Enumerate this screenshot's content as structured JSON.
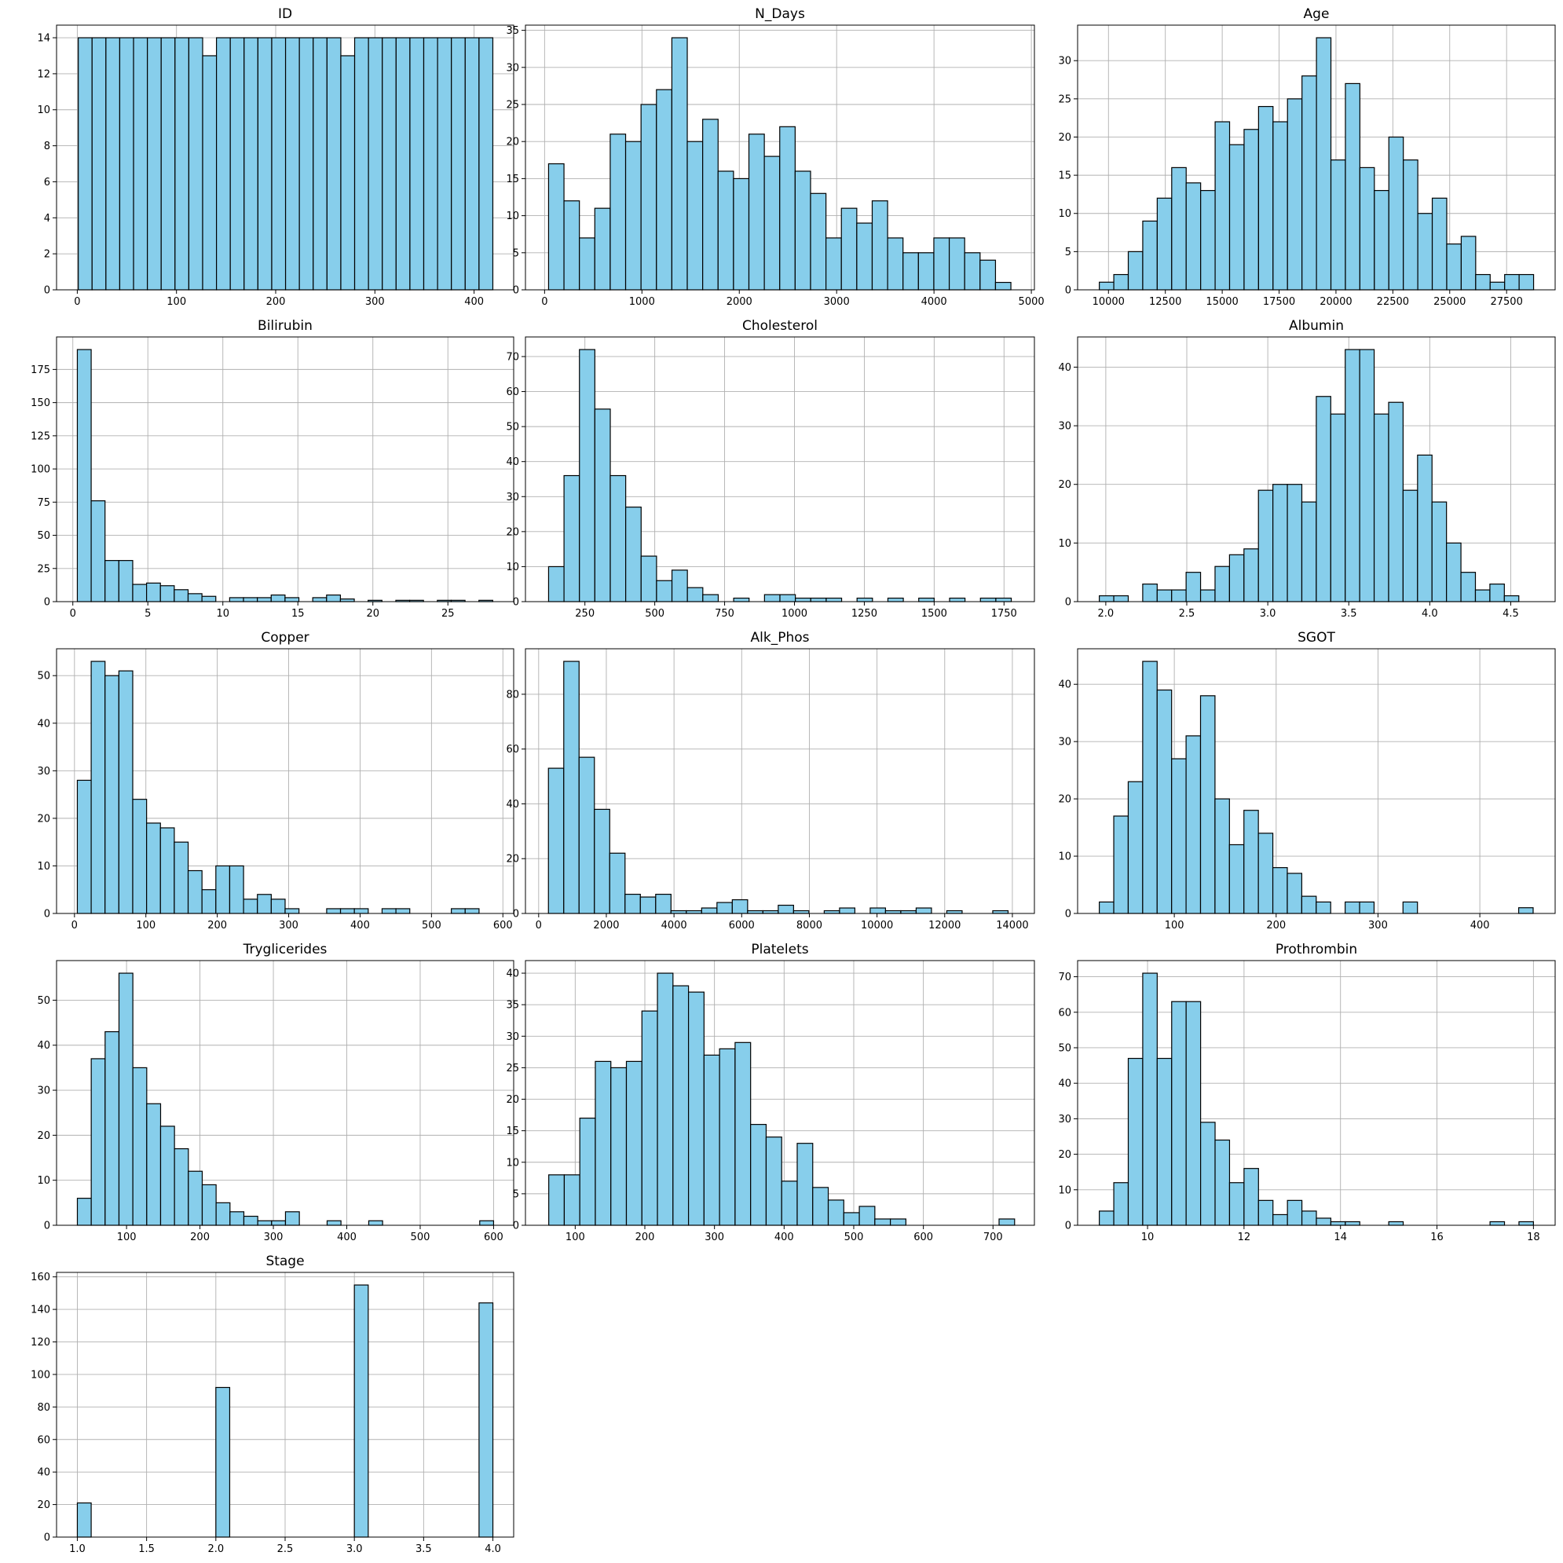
{
  "colors": {
    "bar_fill": "#87ceeb",
    "bar_edge": "#000000",
    "grid": "#b0b0b0",
    "axes": "#000000"
  },
  "chart_data": [
    {
      "type": "bar",
      "title": "ID",
      "grid": true,
      "bin_start": 1,
      "bin_width": 13.93,
      "values": [
        14,
        14,
        14,
        14,
        14,
        14,
        14,
        14,
        14,
        13,
        14,
        14,
        14,
        14,
        14,
        14,
        14,
        14,
        14,
        13,
        14,
        14,
        14,
        14,
        14,
        14,
        14,
        14,
        14,
        14
      ],
      "xlim": [
        -20.9,
        439.9
      ],
      "xticks": [
        0,
        100,
        200,
        300,
        400
      ],
      "xtick_labels": [
        "0",
        "100",
        "200",
        "300",
        "400"
      ],
      "ylim": [
        0,
        14.7
      ],
      "yticks": [
        0,
        2,
        4,
        6,
        8,
        10,
        12,
        14
      ],
      "ytick_labels": [
        "0",
        "2",
        "4",
        "6",
        "8",
        "10",
        "12",
        "14"
      ]
    },
    {
      "type": "bar",
      "title": "N_Days",
      "grid": true,
      "bin_start": 41,
      "bin_width": 158.3,
      "values": [
        17,
        12,
        7,
        11,
        21,
        20,
        25,
        27,
        34,
        20,
        23,
        16,
        15,
        21,
        18,
        22,
        16,
        13,
        7,
        11,
        9,
        12,
        7,
        5,
        5,
        7,
        7,
        5,
        4,
        1
      ],
      "xlim": [
        -196.5,
        5031.5
      ],
      "xticks": [
        0,
        1000,
        2000,
        3000,
        4000,
        5000
      ],
      "xtick_labels": [
        "0",
        "1000",
        "2000",
        "3000",
        "4000",
        "5000"
      ],
      "ylim": [
        0,
        35.7
      ],
      "yticks": [
        0,
        5,
        10,
        15,
        20,
        25,
        30,
        35
      ],
      "ytick_labels": [
        "0",
        "5",
        "10",
        "15",
        "20",
        "25",
        "30",
        "35"
      ]
    },
    {
      "type": "bar",
      "title": "Age",
      "grid": true,
      "bin_start": 9598,
      "bin_width": 636.3,
      "values": [
        1,
        2,
        5,
        9,
        12,
        16,
        14,
        13,
        22,
        19,
        21,
        24,
        22,
        25,
        28,
        33,
        17,
        27,
        16,
        13,
        20,
        17,
        10,
        12,
        6,
        7,
        2,
        1,
        2,
        2
      ],
      "xlim": [
        8643.6,
        29634.4
      ],
      "xticks": [
        10000,
        12500,
        15000,
        17500,
        20000,
        22500,
        25000,
        27500
      ],
      "xtick_labels": [
        "10000",
        "12500",
        "15000",
        "17500",
        "20000",
        "22500",
        "25000",
        "27500"
      ],
      "ylim": [
        0,
        34.65
      ],
      "yticks": [
        0,
        5,
        10,
        15,
        20,
        25,
        30
      ],
      "ytick_labels": [
        "0",
        "5",
        "10",
        "15",
        "20",
        "25",
        "30"
      ]
    },
    {
      "type": "bar",
      "title": "Bilirubin",
      "grid": true,
      "bin_start": 0.3,
      "bin_width": 0.923,
      "values": [
        190,
        76,
        31,
        31,
        13,
        14,
        12,
        9,
        6,
        4,
        0,
        3,
        3,
        3,
        5,
        3,
        0,
        3,
        5,
        2,
        0,
        1,
        0,
        1,
        1,
        0,
        1,
        1,
        0,
        1
      ],
      "xlim": [
        -1.085,
        29.385
      ],
      "xticks": [
        0,
        5,
        10,
        15,
        20,
        25
      ],
      "xtick_labels": [
        "0",
        "5",
        "10",
        "15",
        "20",
        "25"
      ],
      "ylim": [
        0,
        199.5
      ],
      "yticks": [
        0,
        25,
        50,
        75,
        100,
        125,
        150,
        175
      ],
      "ytick_labels": [
        "0",
        "25",
        "50",
        "75",
        "100",
        "125",
        "150",
        "175"
      ]
    },
    {
      "type": "bar",
      "title": "Cholesterol",
      "grid": true,
      "bin_start": 120,
      "bin_width": 55.2,
      "values": [
        10,
        36,
        72,
        55,
        36,
        27,
        13,
        6,
        9,
        4,
        2,
        0,
        1,
        0,
        2,
        2,
        1,
        1,
        1,
        0,
        1,
        0,
        1,
        0,
        1,
        0,
        1,
        0,
        1,
        1
      ],
      "xlim": [
        37.2,
        1858.8
      ],
      "xticks": [
        250,
        500,
        750,
        1000,
        1250,
        1500,
        1750
      ],
      "xtick_labels": [
        "250",
        "500",
        "750",
        "1000",
        "1250",
        "1500",
        "1750"
      ],
      "ylim": [
        0,
        75.6
      ],
      "yticks": [
        0,
        10,
        20,
        30,
        40,
        50,
        60,
        70
      ],
      "ytick_labels": [
        "0",
        "10",
        "20",
        "30",
        "40",
        "50",
        "60",
        "70"
      ]
    },
    {
      "type": "bar",
      "title": "Albumin",
      "grid": true,
      "bin_start": 1.96,
      "bin_width": 0.0893,
      "values": [
        1,
        1,
        0,
        3,
        2,
        2,
        5,
        2,
        6,
        8,
        9,
        19,
        20,
        20,
        17,
        35,
        32,
        43,
        43,
        32,
        34,
        19,
        25,
        17,
        10,
        5,
        2,
        3,
        1,
        0
      ],
      "xlim": [
        1.826,
        4.774
      ],
      "xticks": [
        2.0,
        2.5,
        3.0,
        3.5,
        4.0,
        4.5
      ],
      "xtick_labels": [
        "2.0",
        "2.5",
        "3.0",
        "3.5",
        "4.0",
        "4.5"
      ],
      "ylim": [
        0,
        45.15
      ],
      "yticks": [
        0,
        10,
        20,
        30,
        40
      ],
      "ytick_labels": [
        "0",
        "10",
        "20",
        "30",
        "40"
      ]
    },
    {
      "type": "bar",
      "title": "Copper",
      "grid": true,
      "bin_start": 4,
      "bin_width": 19.4,
      "values": [
        28,
        53,
        50,
        51,
        24,
        19,
        18,
        15,
        9,
        5,
        10,
        10,
        3,
        4,
        3,
        1,
        0,
        0,
        1,
        1,
        1,
        0,
        1,
        1,
        0,
        0,
        0,
        1,
        1,
        0
      ],
      "xlim": [
        -25.1,
        615.1
      ],
      "xticks": [
        0,
        100,
        200,
        300,
        400,
        500,
        600
      ],
      "xtick_labels": [
        "0",
        "100",
        "200",
        "300",
        "400",
        "500",
        "600"
      ],
      "ylim": [
        0,
        55.65
      ],
      "yticks": [
        0,
        10,
        20,
        30,
        40,
        50
      ],
      "ytick_labels": [
        "0",
        "10",
        "20",
        "30",
        "40",
        "50"
      ]
    },
    {
      "type": "bar",
      "title": "Alk_Phos",
      "grid": true,
      "bin_start": 289,
      "bin_width": 452.8,
      "values": [
        53,
        92,
        57,
        38,
        22,
        7,
        6,
        7,
        1,
        1,
        2,
        4,
        5,
        1,
        1,
        3,
        1,
        0,
        1,
        2,
        0,
        2,
        1,
        1,
        2,
        0,
        1,
        0,
        0,
        1
      ],
      "xlim": [
        -390.2,
        14651.2
      ],
      "xticks": [
        0,
        2000,
        4000,
        6000,
        8000,
        10000,
        12000,
        14000
      ],
      "xtick_labels": [
        "0",
        "2000",
        "4000",
        "6000",
        "8000",
        "10000",
        "12000",
        "14000"
      ],
      "ylim": [
        0,
        96.6
      ],
      "yticks": [
        0,
        20,
        40,
        60,
        80
      ],
      "ytick_labels": [
        "0",
        "20",
        "40",
        "60",
        "80"
      ]
    },
    {
      "type": "bar",
      "title": "SGOT",
      "grid": true,
      "bin_start": 26.35,
      "bin_width": 14.2,
      "values": [
        2,
        17,
        23,
        44,
        39,
        27,
        31,
        38,
        20,
        12,
        18,
        14,
        8,
        7,
        3,
        2,
        0,
        2,
        2,
        0,
        0,
        2,
        0,
        0,
        0,
        0,
        0,
        0,
        0,
        1
      ],
      "xlim": [
        5.05,
        473.95
      ],
      "xticks": [
        100,
        200,
        300,
        400
      ],
      "xtick_labels": [
        "100",
        "200",
        "300",
        "400"
      ],
      "ylim": [
        0,
        46.2
      ],
      "yticks": [
        0,
        10,
        20,
        30,
        40
      ],
      "ytick_labels": [
        "0",
        "10",
        "20",
        "30",
        "40"
      ]
    },
    {
      "type": "bar",
      "title": "Tryglicerides",
      "grid": true,
      "bin_start": 33,
      "bin_width": 18.9,
      "values": [
        6,
        37,
        43,
        56,
        35,
        27,
        22,
        17,
        12,
        9,
        5,
        3,
        2,
        1,
        1,
        3,
        0,
        0,
        1,
        0,
        0,
        1,
        0,
        0,
        0,
        0,
        0,
        0,
        0,
        1
      ],
      "xlim": [
        4.65,
        627.35
      ],
      "xticks": [
        100,
        200,
        300,
        400,
        500,
        600
      ],
      "xtick_labels": [
        "100",
        "200",
        "300",
        "400",
        "500",
        "600"
      ],
      "ylim": [
        0,
        58.8
      ],
      "yticks": [
        0,
        10,
        20,
        30,
        40,
        50
      ],
      "ytick_labels": [
        "0",
        "10",
        "20",
        "30",
        "40",
        "50"
      ]
    },
    {
      "type": "bar",
      "title": "Platelets",
      "grid": true,
      "bin_start": 62,
      "bin_width": 22.3,
      "values": [
        8,
        8,
        17,
        26,
        25,
        26,
        34,
        40,
        38,
        37,
        27,
        28,
        29,
        16,
        14,
        7,
        13,
        6,
        4,
        2,
        3,
        1,
        1,
        0,
        0,
        0,
        0,
        0,
        0,
        1
      ],
      "xlim": [
        28.55,
        759.45
      ],
      "xticks": [
        100,
        200,
        300,
        400,
        500,
        600,
        700
      ],
      "xtick_labels": [
        "100",
        "200",
        "300",
        "400",
        "500",
        "600",
        "700"
      ],
      "ylim": [
        0,
        42
      ],
      "yticks": [
        0,
        5,
        10,
        15,
        20,
        25,
        30,
        35,
        40
      ],
      "ytick_labels": [
        "0",
        "5",
        "10",
        "15",
        "20",
        "25",
        "30",
        "35",
        "40"
      ]
    },
    {
      "type": "bar",
      "title": "Prothrombin",
      "grid": true,
      "bin_start": 9.0,
      "bin_width": 0.3,
      "values": [
        4,
        12,
        47,
        71,
        47,
        63,
        63,
        29,
        24,
        12,
        16,
        7,
        3,
        7,
        4,
        2,
        1,
        1,
        0,
        0,
        1,
        0,
        0,
        0,
        0,
        0,
        0,
        1,
        0,
        1
      ],
      "xlim": [
        8.55,
        18.45
      ],
      "xticks": [
        10,
        12,
        14,
        16,
        18
      ],
      "xtick_labels": [
        "10",
        "12",
        "14",
        "16",
        "18"
      ],
      "ylim": [
        0,
        74.55
      ],
      "yticks": [
        0,
        10,
        20,
        30,
        40,
        50,
        60,
        70
      ],
      "ytick_labels": [
        "0",
        "10",
        "20",
        "30",
        "40",
        "50",
        "60",
        "70"
      ]
    },
    {
      "type": "bar",
      "title": "Stage",
      "grid": true,
      "bin_start": 1.0,
      "bin_width": 0.1,
      "values": [
        21,
        0,
        0,
        0,
        0,
        0,
        0,
        0,
        0,
        0,
        92,
        0,
        0,
        0,
        0,
        0,
        0,
        0,
        0,
        0,
        155,
        0,
        0,
        0,
        0,
        0,
        0,
        0,
        0,
        144
      ],
      "xlim": [
        0.85,
        4.15
      ],
      "xticks": [
        1.0,
        1.5,
        2.0,
        2.5,
        3.0,
        3.5,
        4.0
      ],
      "xtick_labels": [
        "1.0",
        "1.5",
        "2.0",
        "2.5",
        "3.0",
        "3.5",
        "4.0"
      ],
      "ylim": [
        0,
        162.75
      ],
      "yticks": [
        0,
        20,
        40,
        60,
        80,
        100,
        120,
        140,
        160
      ],
      "ytick_labels": [
        "0",
        "20",
        "40",
        "60",
        "80",
        "100",
        "120",
        "140",
        "160"
      ]
    }
  ]
}
